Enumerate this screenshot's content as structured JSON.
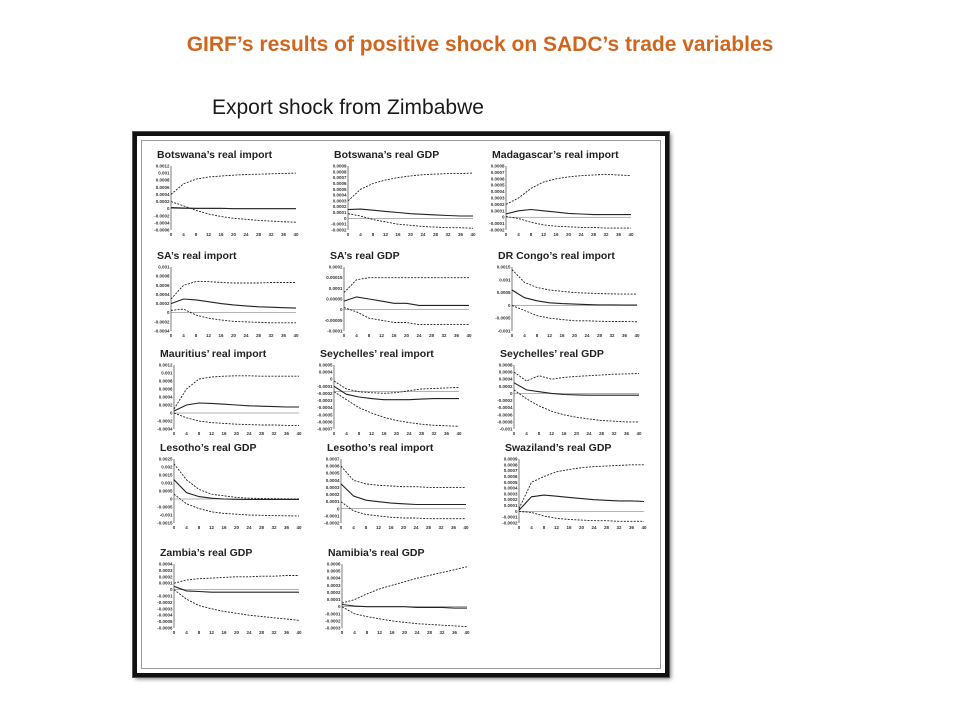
{
  "title": "GIRF’s results of positive shock on SADC’s  trade variables",
  "subtitle": "Export shock from Zimbabwe",
  "chart_data": [
    {
      "type": "line",
      "title": "Botswana’s real import",
      "yticks": [
        "0.0012",
        "0.001",
        "0.0008",
        "0.0006",
        "0.0004",
        "0.0002",
        "0",
        "-0.0002",
        "-0.0004",
        "-0.0006"
      ],
      "xticks": [
        "0",
        "4",
        "8",
        "12",
        "16",
        "20",
        "24",
        "28",
        "32",
        "36",
        "40"
      ],
      "ylim": [
        -0.0006,
        0.0012
      ],
      "series": [
        {
          "values": [
            0.0004,
            0.0007,
            0.00083,
            0.00089,
            0.00092,
            0.00094,
            0.00096,
            0.00097,
            0.00098,
            0.00099,
            0.001
          ]
        },
        {
          "values": [
            3e-05,
            2e-05,
            1e-05,
            1e-05,
            1e-05,
            0,
            0,
            0,
            0,
            0,
            0
          ]
        },
        {
          "values": [
            0.0002,
            8e-05,
            -5e-05,
            -0.00015,
            -0.00022,
            -0.00027,
            -0.0003,
            -0.00033,
            -0.00035,
            -0.00037,
            -0.00038
          ]
        }
      ]
    },
    {
      "type": "line",
      "title": "Botswana’s real GDP",
      "yticks": [
        "0.0009",
        "0.0008",
        "0.0007",
        "0.0006",
        "0.0005",
        "0.0004",
        "0.0003",
        "0.0002",
        "0.0001",
        "0",
        "-0.0001",
        "-0.0002"
      ],
      "xticks": [
        "0",
        "4",
        "8",
        "12",
        "16",
        "20",
        "24",
        "28",
        "32",
        "36",
        "40"
      ],
      "ylim": [
        -0.0002,
        0.0009
      ],
      "series": [
        {
          "values": [
            0.0003,
            0.0005,
            0.0006,
            0.00066,
            0.0007,
            0.00073,
            0.00075,
            0.00076,
            0.00077,
            0.00077,
            0.00078
          ]
        },
        {
          "values": [
            0.00015,
            0.00016,
            0.00014,
            0.00012,
            0.0001,
            8e-05,
            7e-05,
            6e-05,
            5e-05,
            4e-05,
            4e-05
          ]
        },
        {
          "values": [
            8e-05,
            4e-05,
            -2e-05,
            -6e-05,
            -0.0001,
            -0.00012,
            -0.00014,
            -0.00015,
            -0.00016,
            -0.00016,
            -0.00017
          ]
        }
      ]
    },
    {
      "type": "line",
      "title": "Madagascar’s real import",
      "yticks": [
        "0.0008",
        "0.0007",
        "0.0006",
        "0.0005",
        "0.0004",
        "0.0003",
        "0.0002",
        "0.0001",
        "0",
        "-0.0001",
        "-0.0002"
      ],
      "xticks": [
        "0",
        "4",
        "8",
        "12",
        "16",
        "20",
        "24",
        "28",
        "32",
        "36",
        "40"
      ],
      "ylim": [
        -0.0002,
        0.0008
      ],
      "series": [
        {
          "values": [
            0.0002,
            0.0003,
            0.00045,
            0.00055,
            0.0006,
            0.00063,
            0.00065,
            0.00066,
            0.00067,
            0.00066,
            0.00065
          ]
        },
        {
          "values": [
            5e-05,
            0.0001,
            0.00012,
            0.0001,
            8e-05,
            6e-05,
            5e-05,
            4e-05,
            4e-05,
            4e-05,
            4e-05
          ]
        },
        {
          "values": [
            1e-05,
            -2e-05,
            -8e-05,
            -0.00012,
            -0.00014,
            -0.00015,
            -0.00016,
            -0.00016,
            -0.00017,
            -0.00017,
            -0.00017
          ]
        }
      ]
    },
    {
      "type": "line",
      "title": "SA’s real import",
      "yticks": [
        "0.001",
        "0.0008",
        "0.0006",
        "0.0004",
        "0.0002",
        "0",
        "-0.0002",
        "-0.0004"
      ],
      "xticks": [
        "0",
        "4",
        "8",
        "12",
        "16",
        "20",
        "24",
        "28",
        "32",
        "36",
        "40"
      ],
      "ylim": [
        -0.0004,
        0.001
      ],
      "series": [
        {
          "values": [
            0.0003,
            0.0006,
            0.00068,
            0.00068,
            0.00066,
            0.00065,
            0.00065,
            0.00065,
            0.00066,
            0.00066,
            0.00066
          ]
        },
        {
          "values": [
            0.0002,
            0.0003,
            0.00028,
            0.00024,
            0.0002,
            0.00017,
            0.00015,
            0.00013,
            0.00012,
            0.00011,
            0.0001
          ]
        },
        {
          "values": [
            5e-05,
            8e-05,
            -5e-05,
            -0.00012,
            -0.00016,
            -0.00019,
            -0.0002,
            -0.00021,
            -0.00022,
            -0.00022,
            -0.00022
          ]
        }
      ]
    },
    {
      "type": "line",
      "title": "SA’s real GDP",
      "yticks": [
        "0.0002",
        "0.00015",
        "0.0001",
        "0.00005",
        "0",
        "-0.00005",
        "-0.0001"
      ],
      "xticks": [
        "0",
        "4",
        "8",
        "12",
        "16",
        "20",
        "24",
        "28",
        "32",
        "36",
        "40"
      ],
      "ylim": [
        -0.0001,
        0.0002
      ],
      "series": [
        {
          "values": [
            8e-05,
            0.00014,
            0.00015,
            0.00015,
            0.00015,
            0.00015,
            0.00015,
            0.00015,
            0.00015,
            0.00015,
            0.00015
          ]
        },
        {
          "values": [
            4e-05,
            6e-05,
            5e-05,
            4e-05,
            3e-05,
            3e-05,
            2e-05,
            2e-05,
            2e-05,
            2e-05,
            2e-05
          ]
        },
        {
          "values": [
            1e-05,
            -1e-05,
            -4e-05,
            -5e-05,
            -6e-05,
            -6e-05,
            -7e-05,
            -7e-05,
            -7e-05,
            -7e-05,
            -7e-05
          ]
        }
      ]
    },
    {
      "type": "line",
      "title": "DR Congo’s real import",
      "yticks": [
        "0.0015",
        "0.001",
        "0.0005",
        "0",
        "-0.0005",
        "-0.001"
      ],
      "xticks": [
        "0",
        "4",
        "8",
        "12",
        "16",
        "20",
        "24",
        "28",
        "32",
        "36",
        "40"
      ],
      "ylim": [
        -0.001,
        0.0015
      ],
      "series": [
        {
          "values": [
            0.0014,
            0.0009,
            0.0007,
            0.0006,
            0.00055,
            0.0005,
            0.00048,
            0.00046,
            0.00045,
            0.00044,
            0.00044
          ]
        },
        {
          "values": [
            0.0006,
            0.0003,
            0.00018,
            0.0001,
            7e-05,
            5e-05,
            3e-05,
            2e-05,
            2e-05,
            1e-05,
            1e-05
          ]
        },
        {
          "values": [
            0,
            -0.0002,
            -0.0004,
            -0.0005,
            -0.00055,
            -0.0006,
            -0.0006,
            -0.00062,
            -0.00063,
            -0.00063,
            -0.00064
          ]
        }
      ]
    },
    {
      "type": "line",
      "title": "Mauritius’ real import",
      "yticks": [
        "0.0012",
        "0.001",
        "0.0008",
        "0.0006",
        "0.0004",
        "0.0002",
        "0",
        "-0.0002",
        "-0.0004"
      ],
      "xticks": [
        "0",
        "4",
        "8",
        "12",
        "16",
        "20",
        "24",
        "28",
        "32",
        "36",
        "40"
      ],
      "ylim": [
        -0.0004,
        0.0012
      ],
      "series": [
        {
          "values": [
            0.0001,
            0.0006,
            0.00085,
            0.0009,
            0.00092,
            0.00093,
            0.00093,
            0.00092,
            0.00092,
            0.00092,
            0.00092
          ]
        },
        {
          "values": [
            5e-05,
            0.0002,
            0.00025,
            0.00024,
            0.00022,
            0.0002,
            0.00018,
            0.00017,
            0.00016,
            0.00015,
            0.00015
          ]
        },
        {
          "values": [
            0,
            -0.00012,
            -0.0002,
            -0.00024,
            -0.00026,
            -0.00028,
            -0.00029,
            -0.0003,
            -0.0003,
            -0.00031,
            -0.00031
          ]
        }
      ]
    },
    {
      "type": "line",
      "title": "Seychelles’ real import",
      "yticks": [
        "0.0005",
        "0.0004",
        "0",
        "-0.0001",
        "-0.0002",
        "-0.0003",
        "-0.0004",
        "-0.0005",
        "-0.0006",
        "-0.0007"
      ],
      "xticks": [
        "0",
        "4",
        "8",
        "12",
        "16",
        "20",
        "24",
        "28",
        "32",
        "36",
        "40"
      ],
      "ylim": [
        -0.0007,
        0.0005
      ],
      "series": [
        {
          "values": [
            0.0002,
            5e-05,
            0,
            -2e-05,
            -3e-05,
            -2e-05,
            2e-05,
            5e-05,
            6e-05,
            7e-05,
            8e-05
          ]
        },
        {
          "values": [
            0.0001,
            -5e-05,
            -0.0001,
            -0.00013,
            -0.00015,
            -0.00015,
            -0.00015,
            -0.00014,
            -0.00013,
            -0.00013,
            -0.00013
          ]
        },
        {
          "values": [
            0,
            -0.00015,
            -0.0003,
            -0.0004,
            -0.00048,
            -0.00054,
            -0.00058,
            -0.00061,
            -0.00063,
            -0.00064,
            -0.00065
          ]
        }
      ]
    },
    {
      "type": "line",
      "title": "Seychelles’ real GDP",
      "yticks": [
        "0.0008",
        "0.0006",
        "0.0004",
        "0.0002",
        "0",
        "-0.0002",
        "-0.0004",
        "-0.0006",
        "-0.0008",
        "-0.001"
      ],
      "xticks": [
        "0",
        "4",
        "8",
        "12",
        "16",
        "20",
        "24",
        "28",
        "32",
        "36",
        "40"
      ],
      "ylim": [
        -0.001,
        0.0008
      ],
      "series": [
        {
          "values": [
            0.0006,
            0.00035,
            0.0005,
            0.0004,
            0.00045,
            0.00048,
            0.0005,
            0.00052,
            0.00054,
            0.00055,
            0.00056
          ]
        },
        {
          "values": [
            0.0003,
            0.0001,
            5e-05,
            0,
            -3e-05,
            -4e-05,
            -5e-05,
            -5e-05,
            -5e-05,
            -5e-05,
            -5e-05
          ]
        },
        {
          "values": [
            0.0001,
            -0.00015,
            -0.00035,
            -0.0005,
            -0.0006,
            -0.00067,
            -0.00072,
            -0.00076,
            -0.00078,
            -0.0008,
            -0.0008
          ]
        }
      ]
    },
    {
      "type": "line",
      "title": "Lesotho’s real GDP",
      "yticks": [
        "0.0025",
        "0.002",
        "0.0015",
        "0.001",
        "0.0005",
        "0",
        "-0.0005",
        "-0.001",
        "-0.0015"
      ],
      "xticks": [
        "0",
        "4",
        "8",
        "12",
        "16",
        "20",
        "24",
        "28",
        "32",
        "36",
        "40"
      ],
      "ylim": [
        -0.0015,
        0.0025
      ],
      "series": [
        {
          "values": [
            0.0022,
            0.0012,
            0.0006,
            0.0003,
            0.0002,
            0.0001,
            5e-05,
            3e-05,
            2e-05,
            1e-05,
            0
          ]
        },
        {
          "values": [
            0.0012,
            0.0004,
            0.00015,
            5e-05,
            0,
            -2e-05,
            -3e-05,
            -3e-05,
            -3e-05,
            -3e-05,
            -3e-05
          ]
        },
        {
          "values": [
            0.0003,
            -0.0003,
            -0.0006,
            -0.0008,
            -0.0009,
            -0.00095,
            -0.001,
            -0.00102,
            -0.00104,
            -0.00105,
            -0.00106
          ]
        }
      ]
    },
    {
      "type": "line",
      "title": "Lesotho’s real import",
      "yticks": [
        "0.0007",
        "0.0006",
        "0.0005",
        "0.0004",
        "0.0003",
        "0.0002",
        "0.0001",
        "0",
        "-0.0001",
        "-0.0002"
      ],
      "xticks": [
        "0",
        "4",
        "8",
        "12",
        "16",
        "20",
        "24",
        "28",
        "32",
        "36",
        "40"
      ],
      "ylim": [
        -0.0002,
        0.0007
      ],
      "series": [
        {
          "values": [
            0.0006,
            0.0004,
            0.00035,
            0.00033,
            0.00032,
            0.00031,
            0.00031,
            0.0003,
            0.0003,
            0.0003,
            0.0003
          ]
        },
        {
          "values": [
            0.00035,
            0.00018,
            0.00012,
            0.0001,
            8e-05,
            7e-05,
            6e-05,
            6e-05,
            6e-05,
            6e-05,
            6e-05
          ]
        },
        {
          "values": [
            0.0001,
            -3e-05,
            -8e-05,
            -0.0001,
            -0.00012,
            -0.00013,
            -0.00013,
            -0.00014,
            -0.00014,
            -0.00014,
            -0.00014
          ]
        }
      ]
    },
    {
      "type": "line",
      "title": "Swaziland’s real GDP",
      "yticks": [
        "0.0009",
        "0.0008",
        "0.0007",
        "0.0006",
        "0.0005",
        "0.0004",
        "0.0003",
        "0.0002",
        "0.0001",
        "0",
        "-0.0001",
        "-0.0002"
      ],
      "xticks": [
        "0",
        "4",
        "8",
        "12",
        "16",
        "20",
        "24",
        "28",
        "32",
        "36",
        "40"
      ],
      "ylim": [
        -0.0002,
        0.0009
      ],
      "series": [
        {
          "values": [
            5e-05,
            0.0005,
            0.0006,
            0.00068,
            0.00072,
            0.00075,
            0.00077,
            0.00078,
            0.00079,
            0.0008,
            0.0008
          ]
        },
        {
          "values": [
            2e-05,
            0.00025,
            0.00028,
            0.00026,
            0.00024,
            0.00022,
            0.0002,
            0.00019,
            0.00018,
            0.00018,
            0.00017
          ]
        },
        {
          "values": [
            0,
            -2e-05,
            -8e-05,
            -0.00012,
            -0.00014,
            -0.00015,
            -0.00016,
            -0.00016,
            -0.00017,
            -0.00017,
            -0.00017
          ]
        }
      ]
    },
    {
      "type": "line",
      "title": "Zambia’s real GDP",
      "yticks": [
        "0.0004",
        "0.0003",
        "0.0002",
        "0.0001",
        "0",
        "-0.0001",
        "-0.0002",
        "-0.0003",
        "-0.0004",
        "-0.0005",
        "-0.0006"
      ],
      "xticks": [
        "0",
        "4",
        "8",
        "12",
        "16",
        "20",
        "24",
        "28",
        "32",
        "36",
        "40"
      ],
      "ylim": [
        -0.0006,
        0.0004
      ],
      "series": [
        {
          "values": [
            0.0001,
            0.00015,
            0.00017,
            0.00018,
            0.00019,
            0.0002,
            0.0002,
            0.00021,
            0.00021,
            0.00022,
            0.00022
          ]
        },
        {
          "values": [
            5e-05,
            -2e-05,
            -3e-05,
            -4e-05,
            -4e-05,
            -4e-05,
            -4e-05,
            -4e-05,
            -4e-05,
            -4e-05,
            -4e-05
          ]
        },
        {
          "values": [
            0,
            -0.00015,
            -0.00025,
            -0.0003,
            -0.00034,
            -0.00037,
            -0.0004,
            -0.00042,
            -0.00044,
            -0.00046,
            -0.00048
          ]
        }
      ]
    },
    {
      "type": "line",
      "title": "Namibia’s real GDP",
      "yticks": [
        "0.0006",
        "0.0005",
        "0.0004",
        "0.0003",
        "0.0002",
        "0.0001",
        "0",
        "-0.0001",
        "-0.0002",
        "-0.0003"
      ],
      "xticks": [
        "0",
        "4",
        "8",
        "12",
        "16",
        "20",
        "24",
        "28",
        "32",
        "36",
        "40"
      ],
      "ylim": [
        -0.0003,
        0.0006
      ],
      "series": [
        {
          "values": [
            5e-05,
            0.0001,
            0.00018,
            0.00025,
            0.0003,
            0.00035,
            0.0004,
            0.00044,
            0.00048,
            0.00052,
            0.00056
          ]
        },
        {
          "values": [
            3e-05,
            1e-05,
            0,
            0,
            0,
            0,
            -1e-05,
            -1e-05,
            -1e-05,
            -2e-05,
            -2e-05
          ]
        },
        {
          "values": [
            0,
            -0.0001,
            -0.00014,
            -0.00017,
            -0.0002,
            -0.00022,
            -0.00024,
            -0.00025,
            -0.00026,
            -0.00027,
            -0.00028
          ]
        }
      ]
    }
  ]
}
